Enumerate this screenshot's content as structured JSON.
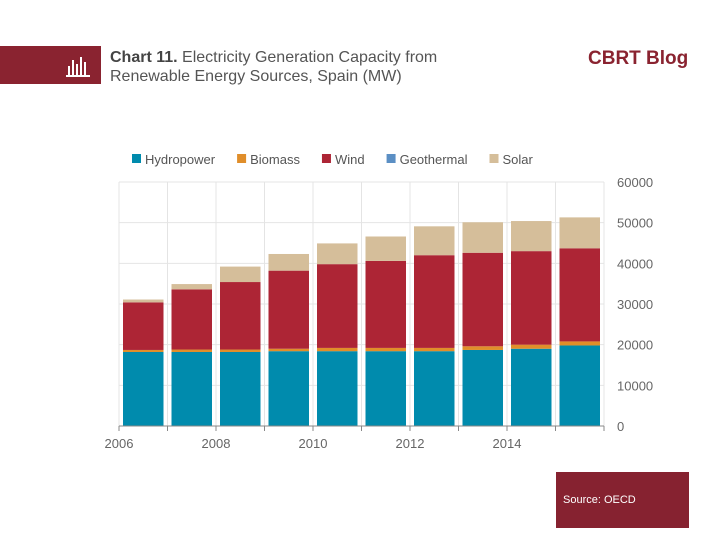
{
  "header": {
    "title_bold": "Chart 11.",
    "title_line1": "Electricity Generation Capacity from",
    "title_line2": "Renewable Energy Sources, Spain (MW)",
    "brand": "CBRT Blog",
    "icon": "bar-chart-icon"
  },
  "source": "Source: OECD",
  "colors": {
    "Hydropower": "#008bad",
    "Biomass": "#e08e2a",
    "Wind": "#ad2535",
    "Geothermal": "#5b8fc4",
    "Solar": "#d5be9a",
    "band": "#8a2330"
  },
  "chart_data": {
    "type": "bar",
    "stacked": true,
    "title": "Electricity Generation Capacity from Renewable Energy Sources, Spain (MW)",
    "categories": [
      "2006",
      "2007",
      "2008",
      "2009",
      "2010",
      "2011",
      "2012",
      "2013",
      "2014",
      "2015"
    ],
    "xtick_labels": [
      "2006",
      "2008",
      "2010",
      "2012",
      "2014"
    ],
    "series": [
      {
        "name": "Hydropower",
        "values": [
          18200,
          18200,
          18200,
          18400,
          18400,
          18400,
          18400,
          18700,
          19000,
          19800
        ]
      },
      {
        "name": "Biomass",
        "values": [
          500,
          600,
          600,
          600,
          800,
          800,
          800,
          900,
          1000,
          1000
        ]
      },
      {
        "name": "Wind",
        "values": [
          11700,
          14800,
          16600,
          19200,
          20600,
          21400,
          22800,
          23000,
          23000,
          22900
        ]
      },
      {
        "name": "Geothermal",
        "values": [
          0,
          0,
          0,
          0,
          0,
          0,
          0,
          0,
          0,
          0
        ]
      },
      {
        "name": "Solar",
        "values": [
          700,
          1300,
          3800,
          4100,
          5100,
          6000,
          7100,
          7500,
          7400,
          7600
        ]
      }
    ],
    "ylim": [
      0,
      60000
    ],
    "yticks": [
      "0",
      "10000",
      "20000",
      "30000",
      "40000",
      "50000",
      "60000"
    ],
    "y_axis_side": "right",
    "grid": true,
    "legend": "top"
  }
}
